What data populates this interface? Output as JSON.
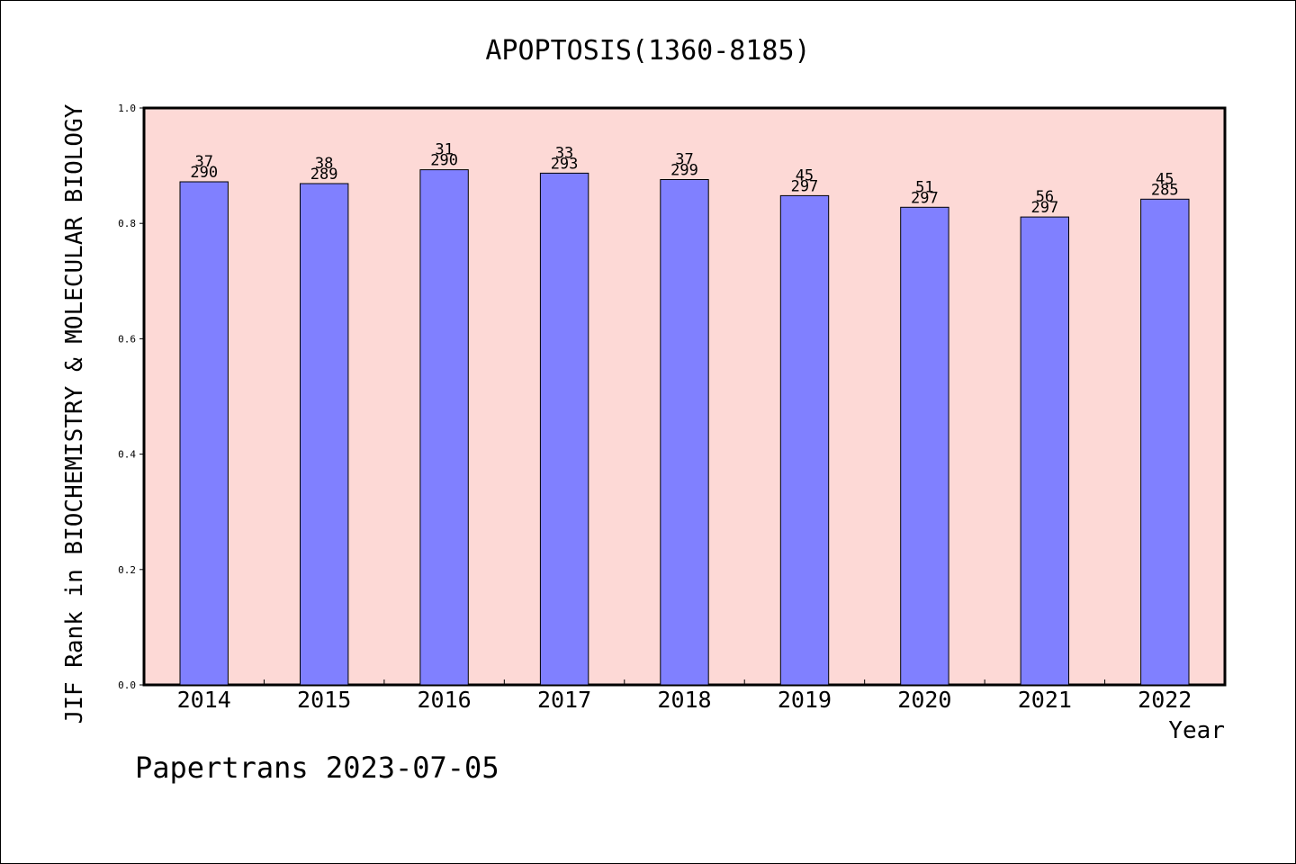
{
  "chart_data": {
    "type": "bar",
    "title": "APOPTOSIS(1360-8185)",
    "xlabel": "Year",
    "ylabel": "JIF Rank in BIOCHEMISTRY & MOLECULAR BIOLOGY",
    "ylim": [
      0,
      1.0
    ],
    "yticks": [
      "0.0",
      "0.2",
      "0.4",
      "0.6",
      "0.8",
      "1.0"
    ],
    "grid": false,
    "categories": [
      "2014",
      "2015",
      "2016",
      "2017",
      "2018",
      "2019",
      "2020",
      "2021",
      "2022"
    ],
    "values": [
      0.872,
      0.869,
      0.893,
      0.887,
      0.876,
      0.848,
      0.828,
      0.811,
      0.842
    ],
    "rank_labels": [
      "37",
      "38",
      "31",
      "33",
      "37",
      "45",
      "51",
      "56",
      "45"
    ],
    "total_labels": [
      "290",
      "289",
      "290",
      "293",
      "299",
      "297",
      "297",
      "297",
      "285"
    ],
    "colors": {
      "plot_bg": "#fdd9d6",
      "bar_fill": "#8080ff",
      "bar_stroke": "#000000"
    }
  },
  "footer": {
    "watermark": "Papertrans 2023-07-05"
  }
}
